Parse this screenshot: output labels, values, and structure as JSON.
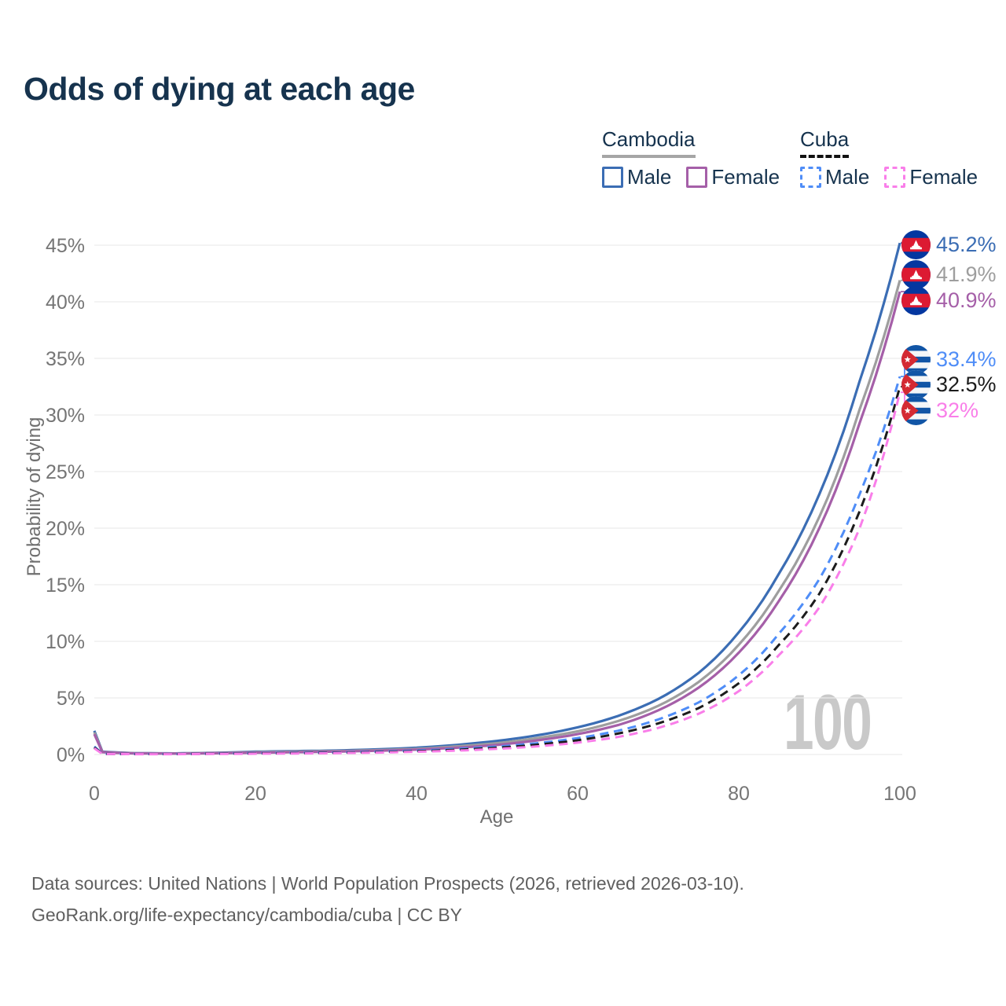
{
  "title": "Odds of dying at each age",
  "legend": {
    "groups": [
      {
        "label": "Cambodia",
        "line_style": "solid",
        "line_color": "#a6a6a6"
      },
      {
        "label": "Cuba",
        "line_style": "dashed",
        "line_color": "#111111"
      }
    ],
    "items": [
      {
        "group": "Cambodia",
        "label": "Male",
        "swatch_style": "solid",
        "swatch_color": "#3b6db4"
      },
      {
        "group": "Cambodia",
        "label": "Female",
        "swatch_style": "solid",
        "swatch_color": "#a55fa8"
      },
      {
        "group": "Cuba",
        "label": "Male",
        "swatch_style": "dashed",
        "swatch_color": "#4f8df7"
      },
      {
        "group": "Cuba",
        "label": "Female",
        "swatch_style": "dashed",
        "swatch_color": "#f97ee9"
      }
    ]
  },
  "footer": {
    "line1": "Data sources: United Nations | World Population Prospects (2026, retrieved 2026-03-10).",
    "line2": "GeoRank.org/life-expectancy/cambodia/cuba | CC BY"
  },
  "chart_data": {
    "type": "line",
    "title": "Odds of dying at each age",
    "xlabel": "Age",
    "ylabel": "Probability of dying",
    "xlim": [
      0,
      100
    ],
    "ylim": [
      0,
      45
    ],
    "grid": "horizontal",
    "legend_position": "top-right",
    "annotation": "100",
    "x_ticks": [
      0,
      20,
      40,
      60,
      80,
      100
    ],
    "y_ticks": [
      0,
      5,
      10,
      15,
      20,
      25,
      30,
      35,
      40,
      45
    ],
    "y_tick_labels": [
      "0%",
      "5%",
      "10%",
      "15%",
      "20%",
      "25%",
      "30%",
      "35%",
      "40%",
      "45%"
    ],
    "x": [
      0,
      1,
      5,
      10,
      15,
      20,
      25,
      30,
      35,
      40,
      45,
      50,
      55,
      60,
      65,
      70,
      75,
      80,
      85,
      90,
      95,
      100
    ],
    "series": [
      {
        "name": "Cambodia Male",
        "country": "Cambodia",
        "sex": "Male",
        "color": "#3b6db4",
        "dashed": false,
        "end_label": "45.2%",
        "flag": "cambodia-flag-icon",
        "values": [
          2.1,
          0.25,
          0.12,
          0.1,
          0.15,
          0.25,
          0.3,
          0.35,
          0.45,
          0.6,
          0.85,
          1.2,
          1.7,
          2.4,
          3.4,
          4.9,
          7.2,
          10.8,
          16.0,
          23.0,
          33.0,
          45.2
        ]
      },
      {
        "name": "Cambodia",
        "country": "Cambodia",
        "sex": "Both",
        "color": "#9e9e9e",
        "dashed": false,
        "end_label": "41.9%",
        "flag": "cambodia-flag-icon",
        "values": [
          1.95,
          0.22,
          0.11,
          0.09,
          0.13,
          0.2,
          0.25,
          0.3,
          0.38,
          0.5,
          0.72,
          1.0,
          1.45,
          2.05,
          2.95,
          4.3,
          6.4,
          9.7,
          14.5,
          21.0,
          30.5,
          41.9
        ]
      },
      {
        "name": "Cambodia Female",
        "country": "Cambodia",
        "sex": "Female",
        "color": "#a55fa8",
        "dashed": false,
        "end_label": "40.9%",
        "flag": "cambodia-flag-icon",
        "values": [
          1.8,
          0.2,
          0.1,
          0.08,
          0.11,
          0.16,
          0.2,
          0.26,
          0.33,
          0.43,
          0.6,
          0.85,
          1.25,
          1.8,
          2.6,
          3.9,
          5.9,
          9.0,
          13.6,
          20.0,
          29.3,
          40.9
        ]
      },
      {
        "name": "Cuba Male",
        "country": "Cuba",
        "sex": "Male",
        "color": "#4f8df7",
        "dashed": true,
        "end_label": "33.4%",
        "flag": "cuba-flag-icon",
        "values": [
          0.7,
          0.06,
          0.04,
          0.04,
          0.08,
          0.12,
          0.15,
          0.18,
          0.25,
          0.35,
          0.5,
          0.7,
          1.0,
          1.45,
          2.1,
          3.1,
          4.6,
          7.0,
          10.7,
          15.5,
          23.0,
          33.4
        ]
      },
      {
        "name": "Cuba",
        "country": "Cuba",
        "sex": "Both",
        "color": "#1c1c1c",
        "dashed": true,
        "end_label": "32.5%",
        "flag": "cuba-flag-icon",
        "values": [
          0.62,
          0.055,
          0.035,
          0.035,
          0.07,
          0.1,
          0.12,
          0.15,
          0.21,
          0.29,
          0.42,
          0.6,
          0.87,
          1.26,
          1.85,
          2.75,
          4.1,
          6.3,
          9.7,
          14.2,
          21.5,
          32.5
        ]
      },
      {
        "name": "Cuba Female",
        "country": "Cuba",
        "sex": "Female",
        "color": "#f97ee9",
        "dashed": true,
        "end_label": "32%",
        "flag": "cuba-flag-icon",
        "values": [
          0.55,
          0.05,
          0.03,
          0.03,
          0.05,
          0.07,
          0.09,
          0.12,
          0.17,
          0.24,
          0.34,
          0.5,
          0.72,
          1.05,
          1.55,
          2.35,
          3.6,
          5.6,
          8.8,
          13.0,
          20.0,
          32.0
        ]
      }
    ]
  }
}
